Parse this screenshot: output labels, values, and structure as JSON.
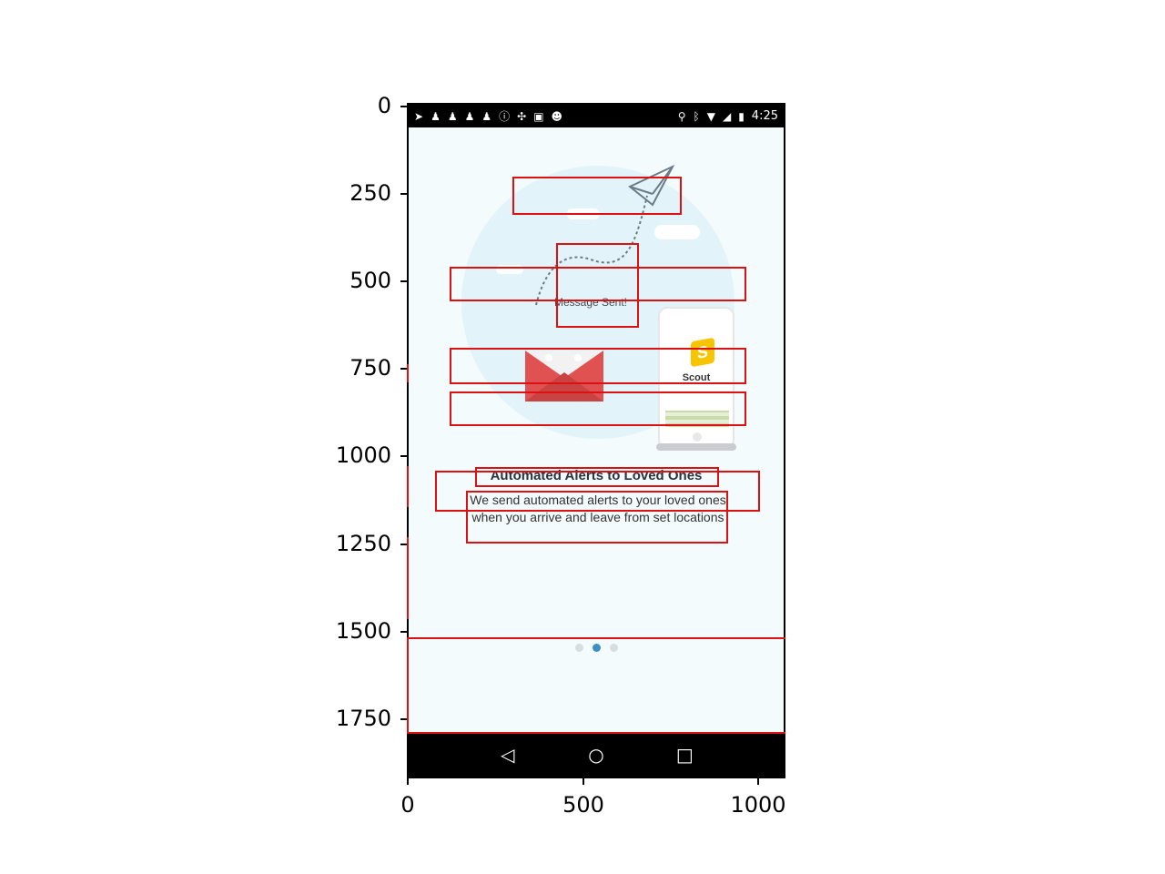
{
  "axes": {
    "y_ticks": [
      "0",
      "250",
      "500",
      "750",
      "1000",
      "1250",
      "1500",
      "1750"
    ],
    "x_ticks": [
      "0",
      "500",
      "1000"
    ]
  },
  "status_bar": {
    "time": "4:25",
    "left_icons": [
      "send-icon",
      "chess-pawn-icon",
      "chess-pawn-icon",
      "chess-pawn-icon",
      "chess-pawn-icon",
      "alert-circle-icon",
      "satellite-icon",
      "lock-icon",
      "android-icon"
    ],
    "right_icons": [
      "location-pin-icon",
      "bluetooth-icon",
      "wifi-icon",
      "no-signal-icon",
      "battery-charging-icon"
    ]
  },
  "illustration": {
    "message_label": "Message Sent!",
    "app_name": "Scout",
    "app_logo_letter": "S",
    "colors": {
      "circle": "#e3f3fa",
      "envelope": "#e05252",
      "logo": "#f7c400",
      "plane": "#6c7b86"
    }
  },
  "onboarding": {
    "title": "Automated Alerts to Loved Ones",
    "description": "We send automated alerts to your loved ones when you arrive and leave from set locations",
    "pager": {
      "count": 3,
      "active_index": 1,
      "active_color": "#3d8fc2"
    }
  },
  "nav_bar": {
    "back": "◁",
    "home": "○",
    "recents": "□"
  },
  "annotation_color": "#dd1111"
}
